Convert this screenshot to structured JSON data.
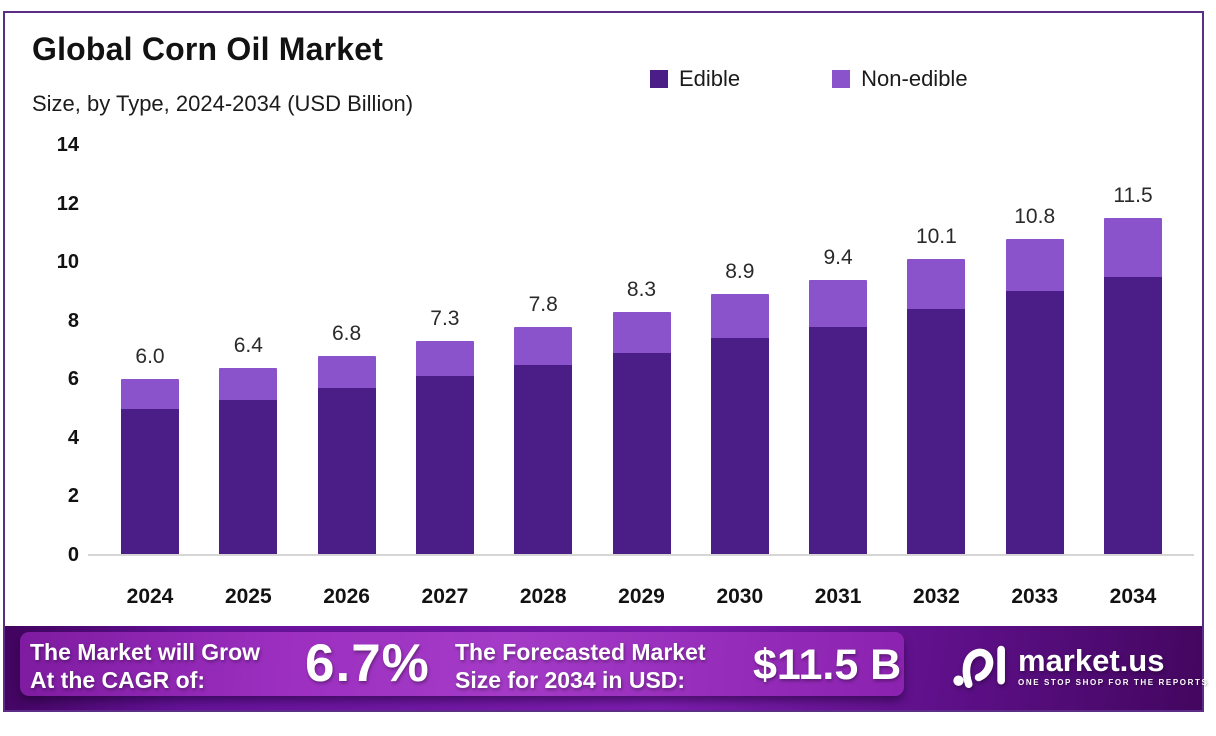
{
  "header": {
    "title": "Global Corn Oil Market",
    "subtitle": "Size, by Type, 2024-2034 (USD Billion)"
  },
  "legend": [
    {
      "label": "Edible",
      "color": "#4A1D87"
    },
    {
      "label": "Non-edible",
      "color": "#8B53CB"
    }
  ],
  "chart_data": {
    "type": "bar",
    "stacked": true,
    "title": "Global Corn Oil Market Size, by Type, 2024-2034 (USD Billion)",
    "categories": [
      "2024",
      "2025",
      "2026",
      "2027",
      "2028",
      "2029",
      "2030",
      "2031",
      "2032",
      "2033",
      "2034"
    ],
    "series": [
      {
        "name": "Edible",
        "color": "#4A1D87",
        "values": [
          5.0,
          5.3,
          5.7,
          6.1,
          6.5,
          6.9,
          7.4,
          7.8,
          8.4,
          9.0,
          9.5
        ]
      },
      {
        "name": "Non-edible",
        "color": "#8B53CB",
        "values": [
          1.0,
          1.1,
          1.1,
          1.2,
          1.3,
          1.4,
          1.5,
          1.6,
          1.7,
          1.8,
          2.0
        ]
      }
    ],
    "totals": [
      6.0,
      6.4,
      6.8,
      7.3,
      7.8,
      8.3,
      8.9,
      9.4,
      10.1,
      10.8,
      11.5
    ],
    "total_labels": [
      "6.0",
      "6.4",
      "6.8",
      "7.3",
      "7.8",
      "8.3",
      "8.9",
      "9.4",
      "10.1",
      "10.8",
      "11.5"
    ],
    "xlabel": "",
    "ylabel": "",
    "ylim": [
      0,
      14
    ],
    "yticks": [
      0,
      2,
      4,
      6,
      8,
      10,
      12,
      14
    ],
    "grid": false,
    "legend_position": "top"
  },
  "footer": {
    "cagr_label_line1": "The Market will Grow",
    "cagr_label_line2": "At the CAGR of:",
    "cagr_value": "6.7%",
    "forecast_label_line1": "The Forecasted Market",
    "forecast_label_line2": "Size for 2034 in USD:",
    "forecast_value": "$11.5 B",
    "brand": {
      "name": "market.us",
      "tagline": "ONE STOP SHOP FOR THE REPORTS"
    }
  },
  "colors": {
    "edible": "#4A1D87",
    "non_edible": "#8B53CB",
    "frame_border": "#5c2d87",
    "banner_dark": "#41045e",
    "banner_bright": "#a43bc7",
    "axis_line": "#d6d6d6"
  }
}
